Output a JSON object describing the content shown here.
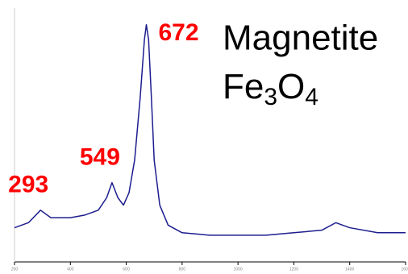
{
  "chart_data": {
    "type": "line",
    "title": "Magnetite",
    "formula": [
      "Fe",
      "3",
      "O",
      "4"
    ],
    "annotations": [
      {
        "x": 293,
        "label": "293"
      },
      {
        "x": 549,
        "label": "549"
      },
      {
        "x": 672,
        "label": "672"
      }
    ],
    "annotation_color": "#ff0000",
    "x": [
      200,
      250,
      293,
      330,
      400,
      450,
      500,
      530,
      549,
      570,
      590,
      610,
      630,
      650,
      665,
      672,
      680,
      690,
      700,
      720,
      750,
      800,
      900,
      1000,
      1100,
      1200,
      1300,
      1350,
      1400,
      1500,
      1600
    ],
    "series": [
      {
        "color": "#1c1c8f",
        "values": [
          13,
          15,
          20,
          17,
          17,
          18,
          20,
          25,
          31,
          25,
          22,
          27,
          40,
          65,
          88,
          94,
          88,
          65,
          40,
          22,
          14,
          11,
          10,
          10,
          10,
          11,
          12,
          15,
          13,
          11,
          11
        ]
      }
    ],
    "xlim": [
      200,
      1600
    ],
    "xticks": [
      200,
      400,
      600,
      800,
      1000,
      1200,
      1400,
      1600
    ],
    "ylim": [
      0,
      100
    ]
  }
}
